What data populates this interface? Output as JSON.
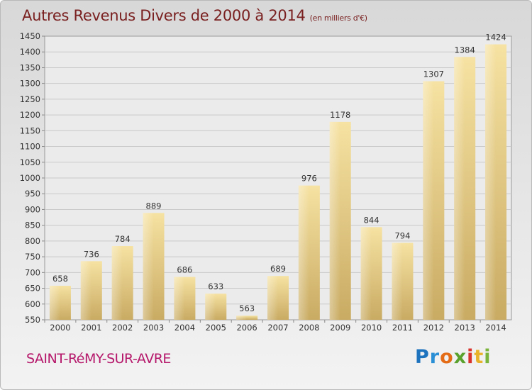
{
  "title": "Autres Revenus Divers de 2000 à 2014",
  "subtitle": "(en milliers d'€)",
  "city": "SAINT-RéMY-SUR-AVRE",
  "logo": [
    "P",
    "r",
    "o",
    "x",
    "i",
    "t",
    "i"
  ],
  "colors": {
    "bar": "#e5c879",
    "bar_light": "#f6e2a6",
    "title": "#7a2020",
    "city": "#b5176a"
  },
  "chart_data": {
    "type": "bar",
    "categories": [
      "2000",
      "2001",
      "2002",
      "2003",
      "2004",
      "2005",
      "2006",
      "2007",
      "2008",
      "2009",
      "2010",
      "2011",
      "2012",
      "2013",
      "2014"
    ],
    "values": [
      658,
      736,
      784,
      889,
      686,
      633,
      563,
      689,
      976,
      1178,
      844,
      794,
      1307,
      1384,
      1424
    ],
    "ylim": [
      550,
      1450
    ],
    "yticks": [
      550,
      600,
      650,
      700,
      750,
      800,
      850,
      900,
      950,
      1000,
      1050,
      1100,
      1150,
      1200,
      1250,
      1300,
      1350,
      1400,
      1450
    ],
    "grid": true
  }
}
